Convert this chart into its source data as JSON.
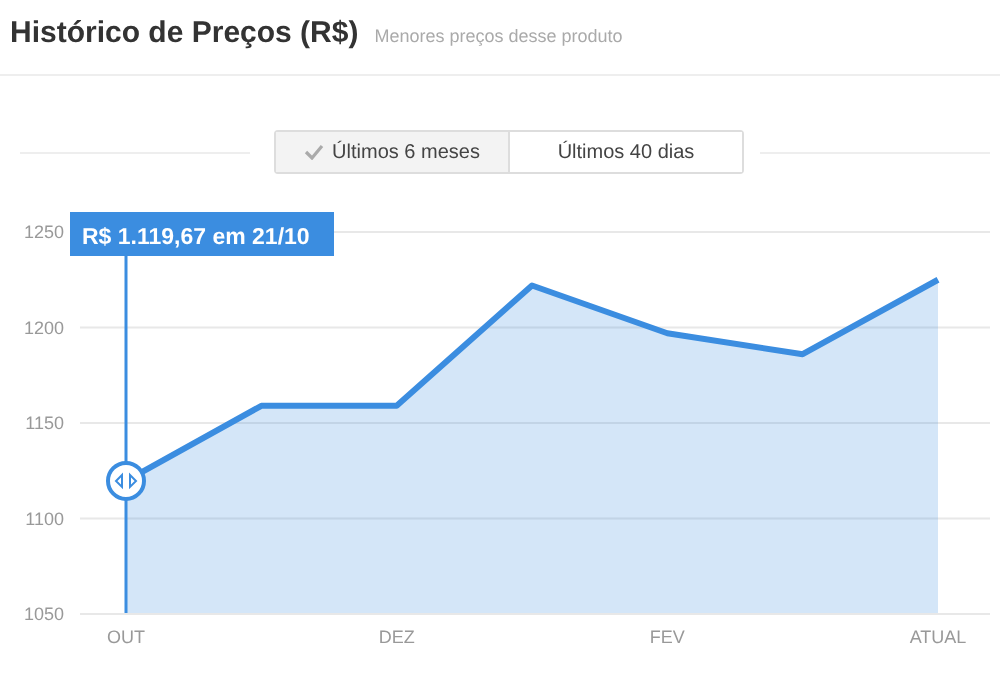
{
  "chart_data": {
    "type": "area",
    "title": "Histórico de Preços (R$)",
    "subtitle": "Menores preços desse produto",
    "categories": [
      "OUT",
      null,
      "DEZ",
      null,
      "FEV",
      null,
      "ATUAL"
    ],
    "series": [
      {
        "color": "#3b8de0",
        "values": [
          1119.67,
          1159,
          1159,
          1222,
          1197,
          1186,
          1225
        ]
      }
    ],
    "ylim": [
      1050,
      1250
    ],
    "yticks": [
      1050,
      1100,
      1150,
      1200,
      1250
    ],
    "grid": "y",
    "marker": "none",
    "line_style": "solid",
    "ref_lines": [
      {
        "axis": "x",
        "value": "OUT",
        "label": "R$ 1.119,67 em 21/10",
        "color": "#3b8de0"
      }
    ],
    "annotations": [
      "Últimos 6 meses",
      "Últimos 40 dias"
    ]
  }
}
